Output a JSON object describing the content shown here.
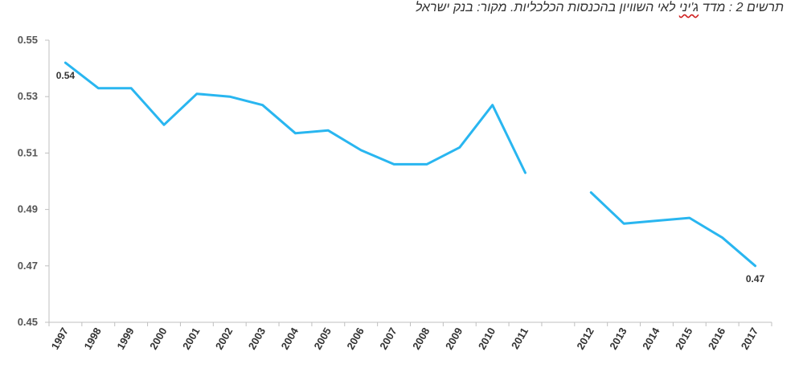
{
  "caption": {
    "prefix": "תרשים 2 : מדד ",
    "squiggle_word": "ג'יני",
    "suffix": " לאי השוויון בהכנסות הכלכליות. מקור: בנק ישראל"
  },
  "chart_data": {
    "type": "line",
    "title": "תרשים 2 : מדד ג'יני לאי השוויון בהכנסות הכלכליות. מקור: בנק ישראל",
    "xlabel": "",
    "ylabel": "",
    "ylim": [
      0.45,
      0.55
    ],
    "yticks": [
      "0.55",
      "0.53",
      "0.51",
      "0.49",
      "0.47",
      "0.45"
    ],
    "grid": false,
    "line_color": "#29b6f0",
    "categories": [
      "1997",
      "1998",
      "1999",
      "2000",
      "2001",
      "2002",
      "2003",
      "2004",
      "2005",
      "2006",
      "2007",
      "2008",
      "2009",
      "2010",
      "2011",
      "",
      "2012",
      "2013",
      "2014",
      "2015",
      "2016",
      "2017"
    ],
    "values": [
      0.542,
      0.533,
      0.533,
      0.52,
      0.531,
      0.53,
      0.527,
      0.517,
      0.518,
      0.511,
      0.506,
      0.506,
      0.512,
      0.527,
      0.503,
      null,
      0.496,
      0.485,
      0.486,
      0.487,
      0.48,
      0.47
    ],
    "data_labels": [
      {
        "category": "1997",
        "text": "0.54"
      },
      {
        "category": "2017",
        "text": "0.47"
      }
    ]
  }
}
